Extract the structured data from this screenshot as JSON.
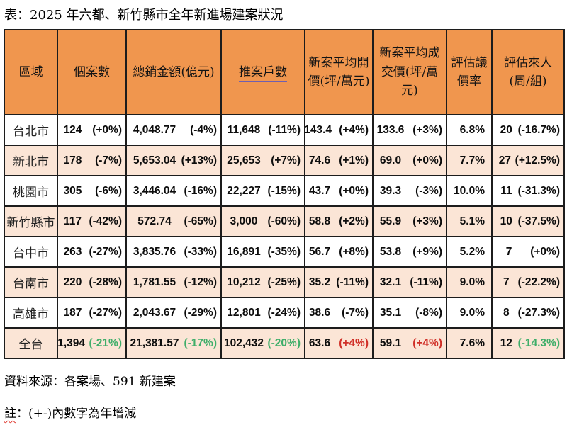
{
  "title": "表：2025 年六都、新竹縣市全年新進場建案狀況",
  "chart_data": {
    "type": "table",
    "columns": [
      "區域",
      "個案數",
      "總銷金額(億元)",
      "推案戶數",
      "新案平均開價(坪/萬元)",
      "新案平均成交價(坪/萬元)",
      "評估議價率",
      "評估來人(周/組)"
    ],
    "rows": [
      {
        "region": "台北市",
        "cells": [
          {
            "v": "124",
            "p": "(+0%)"
          },
          {
            "v": "4,048.77",
            "p": "(-4%)"
          },
          {
            "v": "11,648",
            "p": "(-11%)"
          },
          {
            "v": "143.4",
            "p": "(+4%)"
          },
          {
            "v": "133.6",
            "p": "(+3%)"
          },
          {
            "v": "6.8%",
            "p": ""
          },
          {
            "v": "20",
            "p": "(-16.7%)"
          }
        ]
      },
      {
        "region": "新北市",
        "cells": [
          {
            "v": "178",
            "p": "(-7%)"
          },
          {
            "v": "5,653.04",
            "p": "(+13%)"
          },
          {
            "v": "25,653",
            "p": "(+7%)"
          },
          {
            "v": "74.6",
            "p": "(+1%)"
          },
          {
            "v": "69.0",
            "p": "(+0%)"
          },
          {
            "v": "7.7%",
            "p": ""
          },
          {
            "v": "27",
            "p": "(+12.5%)"
          }
        ]
      },
      {
        "region": "桃園市",
        "cells": [
          {
            "v": "305",
            "p": "(-6%)"
          },
          {
            "v": "3,446.04",
            "p": "(-16%)"
          },
          {
            "v": "22,227",
            "p": "(-15%)"
          },
          {
            "v": "43.7",
            "p": "(+0%)"
          },
          {
            "v": "39.3",
            "p": "(-3%)"
          },
          {
            "v": "10.0%",
            "p": ""
          },
          {
            "v": "11",
            "p": "(-31.3%)"
          }
        ]
      },
      {
        "region": "新竹縣市",
        "cells": [
          {
            "v": "117",
            "p": "(-42%)"
          },
          {
            "v": "572.74",
            "p": "(-65%)"
          },
          {
            "v": "3,000",
            "p": "(-60%)"
          },
          {
            "v": "58.8",
            "p": "(+2%)"
          },
          {
            "v": "55.9",
            "p": "(+3%)"
          },
          {
            "v": "5.1%",
            "p": ""
          },
          {
            "v": "10",
            "p": "(-37.5%)"
          }
        ]
      },
      {
        "region": "台中市",
        "cells": [
          {
            "v": "263",
            "p": "(-27%)"
          },
          {
            "v": "3,835.76",
            "p": "(-33%)"
          },
          {
            "v": "16,891",
            "p": "(-35%)"
          },
          {
            "v": "56.7",
            "p": "(+8%)"
          },
          {
            "v": "53.8",
            "p": "(+9%)"
          },
          {
            "v": "5.2%",
            "p": ""
          },
          {
            "v": "7",
            "p": "(+0%)"
          }
        ]
      },
      {
        "region": "台南市",
        "cells": [
          {
            "v": "220",
            "p": "(-28%)"
          },
          {
            "v": "1,781.55",
            "p": "(-12%)"
          },
          {
            "v": "10,212",
            "p": "(-25%)"
          },
          {
            "v": "35.2",
            "p": "(-11%)"
          },
          {
            "v": "32.1",
            "p": "(-11%)"
          },
          {
            "v": "9.0%",
            "p": ""
          },
          {
            "v": "7",
            "p": "(-22.2%)"
          }
        ]
      },
      {
        "region": "高雄市",
        "cells": [
          {
            "v": "187",
            "p": "(-27%)"
          },
          {
            "v": "2,043.67",
            "p": "(-29%)"
          },
          {
            "v": "12,801",
            "p": "(-24%)"
          },
          {
            "v": "38.6",
            "p": "(-7%)"
          },
          {
            "v": "35.1",
            "p": "(-8%)"
          },
          {
            "v": "9.0%",
            "p": ""
          },
          {
            "v": "8",
            "p": "(-27.3%)"
          }
        ]
      },
      {
        "region": "全台",
        "total": true,
        "cells": [
          {
            "v": "1,394",
            "p": "(-21%)",
            "pc": "green"
          },
          {
            "v": "21,381.57",
            "p": "(-17%)",
            "pc": "green"
          },
          {
            "v": "102,432",
            "p": "(-20%)",
            "pc": "green"
          },
          {
            "v": "63.6",
            "p": "(+4%)",
            "pc": "red"
          },
          {
            "v": "59.1",
            "p": "(+4%)",
            "pc": "red"
          },
          {
            "v": "7.6%",
            "p": ""
          },
          {
            "v": "12",
            "p": "(-14.3%)",
            "pc": "green"
          }
        ]
      }
    ]
  },
  "footnotes": {
    "source": "資料來源：各案場、591 新建案",
    "note_prefix": "註",
    "note_rest": "：(+-)內數字為年增減"
  },
  "colors": {
    "header_bg": "#f0964e",
    "alt_row_bg": "#fbe5d6",
    "green": "#3fae6a",
    "red": "#d03028",
    "underline": "#6f5fb0"
  }
}
